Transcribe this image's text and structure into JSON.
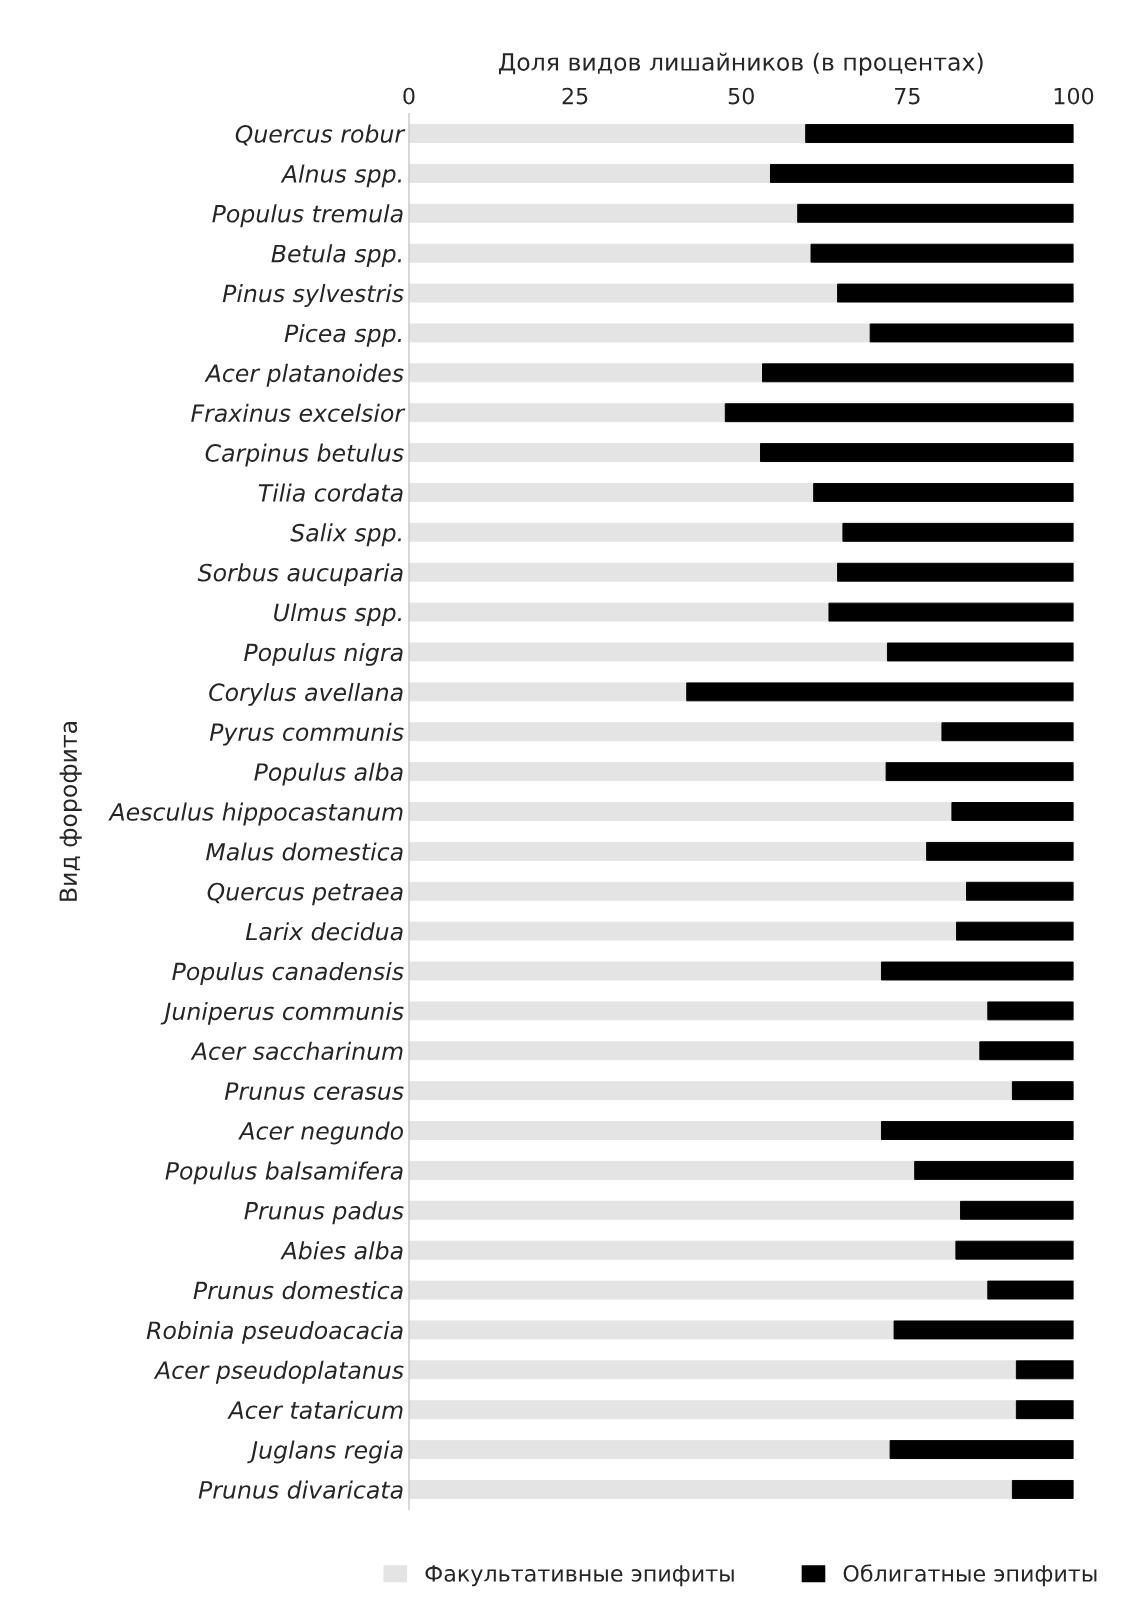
{
  "chart_data": {
    "type": "bar",
    "orientation": "horizontal",
    "stacked": true,
    "xlabel": "Доля видов лишайников (в процентах)",
    "ylabel": "Вид форофита",
    "categories": [
      "Quercus robur",
      "Alnus spp.",
      "Populus tremula",
      "Betula spp.",
      "Pinus sylvestris",
      "Picea spp.",
      "Acer platanoides",
      "Fraxinus excelsior",
      "Carpinus betulus",
      "Tilia cordata",
      "Salix spp.",
      "Sorbus aucuparia",
      "Ulmus spp.",
      "Populus nigra",
      "Corylus avellana",
      "Pyrus communis",
      "Populus alba",
      "Aesculus hippocastanum",
      "Malus domestica",
      "Quercus petraea",
      "Larix decidua",
      "Populus canadensis",
      "Juniperus communis",
      "Acer saccharinum",
      "Prunus cerasus",
      "Acer negundo",
      "Populus balsamifera",
      "Prunus padus",
      "Abies alba",
      "Prunus domestica",
      "Robinia pseudoacacia",
      "Acer pseudoplatanus",
      "Acer tataricum",
      "Juglans regia",
      "Prunus divaricata"
    ],
    "series": [
      {
        "name": "Факультативные эпифиты",
        "color": "#e4e4e4",
        "values": [
          59.7,
          54.4,
          58.5,
          60.5,
          64.5,
          69.4,
          53.2,
          47.6,
          52.9,
          60.9,
          65.3,
          64.5,
          63.2,
          72.0,
          41.8,
          80.2,
          71.8,
          81.7,
          77.9,
          83.9,
          82.4,
          71.1,
          87.1,
          85.9,
          90.8,
          71.1,
          76.1,
          83.0,
          82.3,
          87.1,
          73.0,
          91.4,
          91.4,
          72.4,
          90.8
        ]
      },
      {
        "name": "Облигатные эпифиты",
        "color": "#000000",
        "values": [
          40.3,
          45.6,
          41.5,
          39.5,
          35.5,
          30.6,
          46.8,
          52.4,
          47.1,
          39.1,
          34.7,
          35.5,
          36.8,
          28.0,
          58.2,
          19.8,
          28.2,
          18.3,
          22.1,
          16.1,
          17.6,
          28.9,
          12.9,
          14.1,
          9.2,
          28.9,
          23.9,
          17.0,
          17.7,
          12.9,
          27.0,
          8.6,
          8.6,
          27.6,
          9.2
        ]
      }
    ],
    "xlim": [
      0,
      100
    ],
    "xticks": [
      0,
      25,
      50,
      75,
      100
    ],
    "grid": false,
    "legend": "bottom"
  }
}
